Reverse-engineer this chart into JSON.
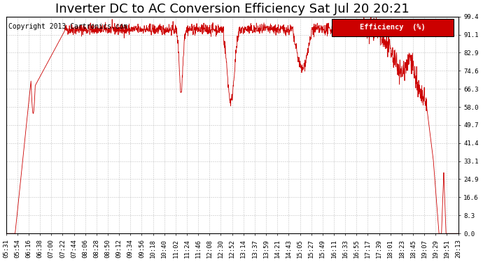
{
  "title": "Inverter DC to AC Conversion Efficiency Sat Jul 20 20:21",
  "copyright": "Copyright 2013 Cartronics.com",
  "legend_label": "Efficiency  (%)",
  "legend_bg": "#cc0000",
  "legend_text_color": "#ffffff",
  "line_color": "#cc0000",
  "bg_color": "#ffffff",
  "plot_bg_color": "#ffffff",
  "grid_color": "#aaaaaa",
  "ylim": [
    0.0,
    99.4
  ],
  "yticks": [
    0.0,
    8.3,
    16.6,
    24.9,
    33.1,
    41.4,
    49.7,
    58.0,
    66.3,
    74.6,
    82.9,
    91.1,
    99.4
  ],
  "x_labels": [
    "05:31",
    "05:54",
    "06:16",
    "06:38",
    "07:00",
    "07:22",
    "07:44",
    "08:06",
    "08:28",
    "08:50",
    "09:12",
    "09:34",
    "09:56",
    "10:18",
    "10:40",
    "11:02",
    "11:24",
    "11:46",
    "12:08",
    "12:30",
    "12:52",
    "13:14",
    "13:37",
    "13:59",
    "14:21",
    "14:43",
    "15:05",
    "15:27",
    "15:49",
    "16:11",
    "16:33",
    "16:55",
    "17:17",
    "17:39",
    "18:01",
    "18:23",
    "18:45",
    "19:07",
    "19:29",
    "19:51",
    "20:13"
  ],
  "title_fontsize": 13,
  "copyright_fontsize": 7,
  "tick_fontsize": 6.5,
  "legend_fontsize": 7.5,
  "figsize": [
    6.9,
    3.75
  ],
  "dpi": 100
}
